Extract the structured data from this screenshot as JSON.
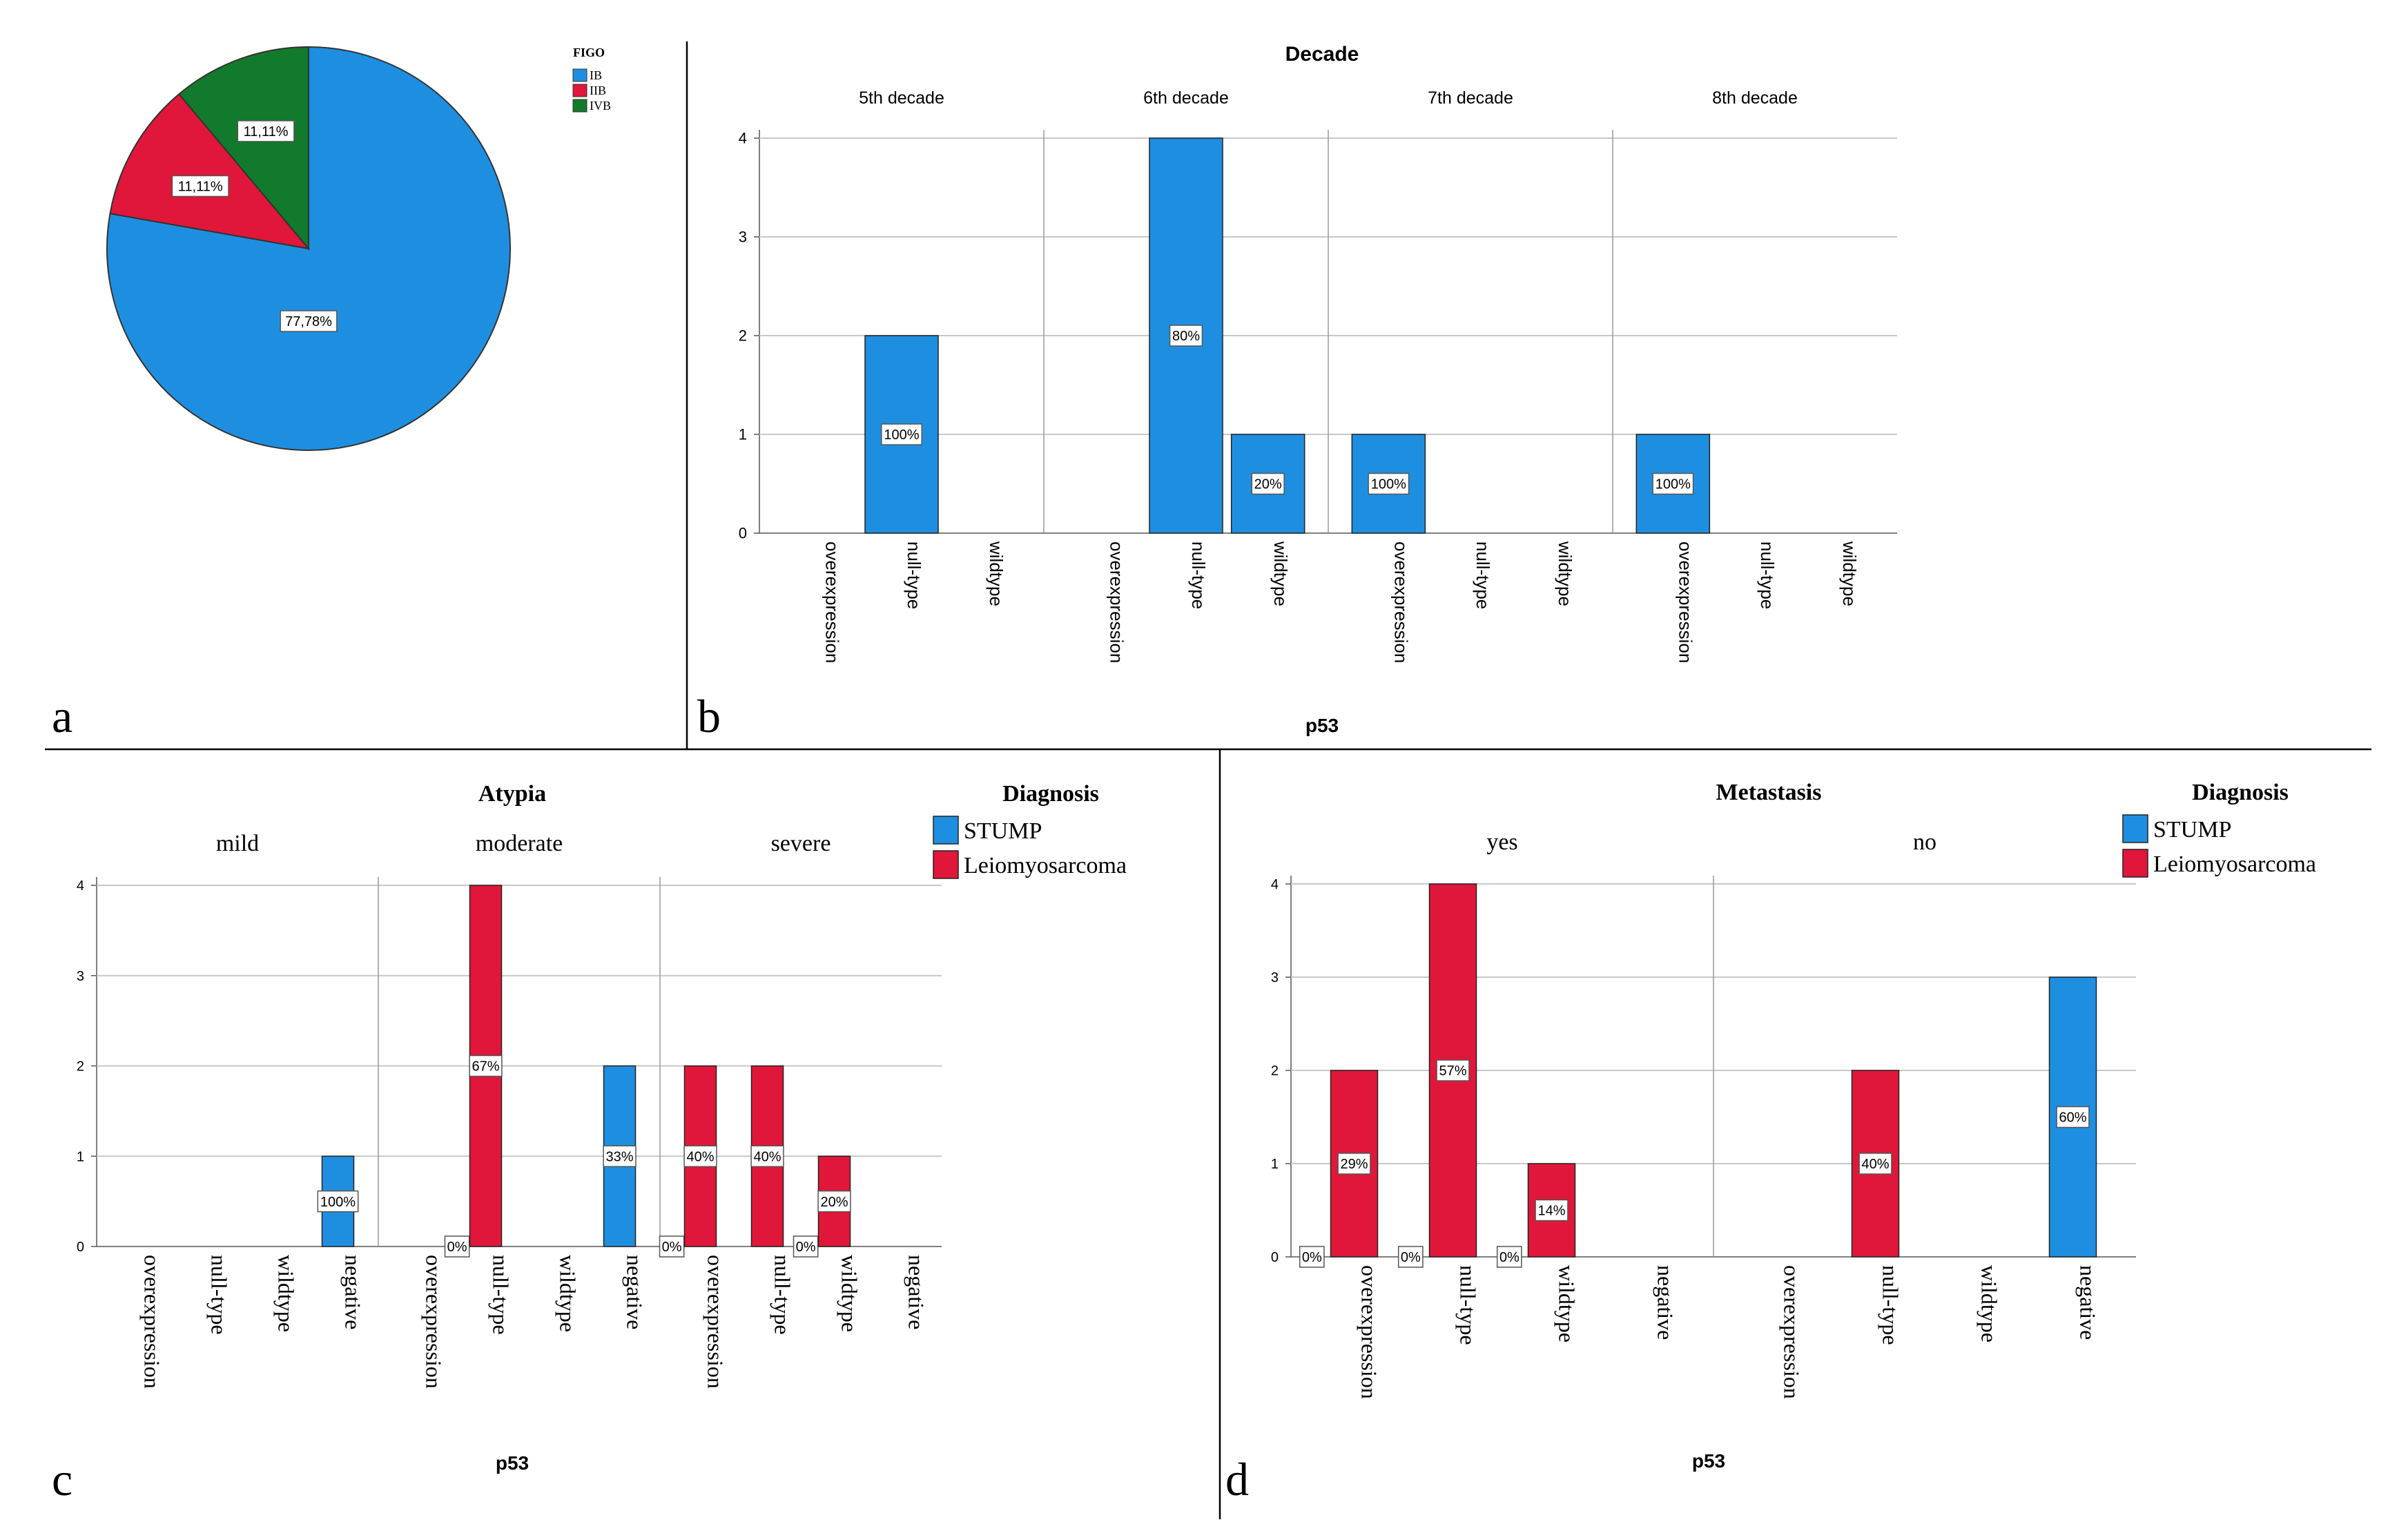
{
  "colors": {
    "stump": "#1E8FE0",
    "leiomyosarcoma": "#E0173A",
    "ib": "#1E8FE0",
    "iib": "#E0173A",
    "ivb": "#127A2C",
    "gridline": "#C8C8C8",
    "divider": "#000000",
    "label_box_border": "#555555"
  },
  "panels": {
    "a": {
      "letter": "a"
    },
    "b": {
      "letter": "b"
    },
    "c": {
      "letter": "c"
    },
    "d": {
      "letter": "d"
    }
  },
  "chart_data": [
    {
      "id": "a",
      "type": "pie",
      "legend_title": "FIGO",
      "legend_position": "top-right",
      "slices": [
        {
          "name": "IB",
          "value": 77.78,
          "label": "77,78%",
          "color": "#1E8FE0"
        },
        {
          "name": "IIB",
          "value": 11.11,
          "label": "11,11%",
          "color": "#E0173A"
        },
        {
          "name": "IVB",
          "value": 11.11,
          "label": "11,11%",
          "color": "#127A2C"
        }
      ]
    },
    {
      "id": "b",
      "type": "bar",
      "title": "Decade",
      "xlabel": "p53",
      "ylabel": "",
      "ylim": [
        0,
        4
      ],
      "yticks": [
        "0",
        "1",
        "2",
        "3",
        "4"
      ],
      "categories": [
        "overexpression",
        "null-type",
        "wildtype"
      ],
      "facets": [
        {
          "name": "5th decade",
          "bars": [
            {
              "category": "null-type",
              "value": 2,
              "label": "100%",
              "series": "STUMP"
            }
          ]
        },
        {
          "name": "6th decade",
          "bars": [
            {
              "category": "null-type",
              "value": 4,
              "label": "80%",
              "series": "STUMP"
            },
            {
              "category": "wildtype",
              "value": 1,
              "label": "20%",
              "series": "STUMP"
            }
          ]
        },
        {
          "name": "7th decade",
          "bars": [
            {
              "category": "overexpression",
              "value": 1,
              "label": "100%",
              "series": "STUMP"
            }
          ]
        },
        {
          "name": "8th decade",
          "bars": [
            {
              "category": "overexpression",
              "value": 1,
              "label": "100%",
              "series": "STUMP"
            }
          ]
        }
      ]
    },
    {
      "id": "c",
      "type": "bar",
      "title": "Atypia",
      "xlabel": "p53",
      "ylabel": "",
      "ylim": [
        0,
        4
      ],
      "yticks": [
        "0",
        "1",
        "2",
        "3",
        "4"
      ],
      "categories": [
        "overexpression",
        "null-type",
        "wildtype",
        "negative"
      ],
      "legend": {
        "title": "Diagnosis",
        "entries": [
          {
            "name": "STUMP",
            "color": "#1E8FE0"
          },
          {
            "name": "Leiomyosarcoma",
            "color": "#E0173A"
          }
        ]
      },
      "facets": [
        {
          "name": "mild",
          "bars": [
            {
              "category": "negative",
              "value": 1,
              "label": "100%",
              "series": "STUMP"
            }
          ]
        },
        {
          "name": "moderate",
          "bars": [
            {
              "category": "null-type",
              "value": 0,
              "label": "0%",
              "series": "Leiomyosarcoma"
            },
            {
              "category": "null-type",
              "value": 4,
              "label": "67%",
              "series": "Leiomyosarcoma"
            },
            {
              "category": "negative",
              "value": 2,
              "label": "33%",
              "series": "STUMP"
            }
          ]
        },
        {
          "name": "severe",
          "bars": [
            {
              "category": "overexpression",
              "value": 0,
              "label": "0%",
              "series": "Leiomyosarcoma"
            },
            {
              "category": "overexpression",
              "value": 2,
              "label": "40%",
              "series": "Leiomyosarcoma"
            },
            {
              "category": "null-type",
              "value": 2,
              "label": "40%",
              "series": "Leiomyosarcoma"
            },
            {
              "category": "wildtype",
              "value": 0,
              "label": "0%",
              "series": "Leiomyosarcoma"
            },
            {
              "category": "wildtype",
              "value": 1,
              "label": "20%",
              "series": "Leiomyosarcoma"
            }
          ]
        }
      ]
    },
    {
      "id": "d",
      "type": "bar",
      "title": "Metastasis",
      "xlabel": "p53",
      "ylabel": "",
      "ylim": [
        0,
        4
      ],
      "yticks": [
        "0",
        "1",
        "2",
        "3",
        "4"
      ],
      "categories": [
        "overexpression",
        "null-type",
        "wildtype",
        "negative"
      ],
      "legend": {
        "title": "Diagnosis",
        "entries": [
          {
            "name": "STUMP",
            "color": "#1E8FE0"
          },
          {
            "name": "Leiomyosarcoma",
            "color": "#E0173A"
          }
        ]
      },
      "facets": [
        {
          "name": "yes",
          "bars": [
            {
              "category": "overexpression",
              "value": 0,
              "label": "0%",
              "series": "Leiomyosarcoma"
            },
            {
              "category": "overexpression",
              "value": 2,
              "label": "29%",
              "series": "Leiomyosarcoma"
            },
            {
              "category": "null-type",
              "value": 0,
              "label": "0%",
              "series": "Leiomyosarcoma"
            },
            {
              "category": "null-type",
              "value": 4,
              "label": "57%",
              "series": "Leiomyosarcoma"
            },
            {
              "category": "wildtype",
              "value": 0,
              "label": "0%",
              "series": "Leiomyosarcoma"
            },
            {
              "category": "wildtype",
              "value": 1,
              "label": "14%",
              "series": "Leiomyosarcoma"
            }
          ]
        },
        {
          "name": "no",
          "bars": [
            {
              "category": "null-type",
              "value": 2,
              "label": "40%",
              "series": "Leiomyosarcoma"
            },
            {
              "category": "negative",
              "value": 3,
              "label": "60%",
              "series": "STUMP"
            }
          ]
        }
      ]
    }
  ]
}
